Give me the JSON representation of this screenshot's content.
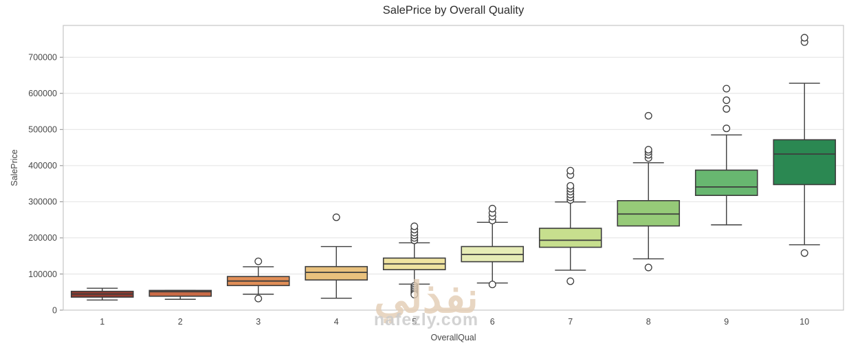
{
  "watermark": {
    "arabic": "نفذلي",
    "url": "nafezly.com"
  },
  "chart_data": {
    "type": "box",
    "title": "SalePrice by Overall Quality",
    "xlabel": "OverallQual",
    "ylabel": "SalePrice",
    "categories": [
      "1",
      "2",
      "3",
      "4",
      "5",
      "6",
      "7",
      "8",
      "9",
      "10"
    ],
    "yticks": [
      0,
      100000,
      200000,
      300000,
      400000,
      500000,
      600000,
      700000
    ],
    "ylim": [
      0,
      788000
    ],
    "grid": "horizontal",
    "legend": "none",
    "line_color": "#3d3d3d",
    "grid_color": "#e2e2e2",
    "spine_color": "#c6c6c6",
    "tick_color": "#474747",
    "series": [
      {
        "label": "1",
        "fill": "#953b30",
        "whisker_low": 28000,
        "q1": 36000,
        "median": 44500,
        "q3": 52000,
        "whisker_high": 60500,
        "outliers": []
      },
      {
        "label": "2",
        "fill": "#ca6b47",
        "whisker_low": 30000,
        "q1": 38500,
        "median": 51000,
        "q3": 54500,
        "whisker_high": 54500,
        "outliers": []
      },
      {
        "label": "3",
        "fill": "#e08e57",
        "whisker_low": 44000,
        "q1": 68000,
        "median": 80500,
        "q3": 93000,
        "whisker_high": 120000,
        "outliers": [
          135000,
          32000
        ]
      },
      {
        "label": "4",
        "fill": "#e9c17d",
        "whisker_low": 33000,
        "q1": 83500,
        "median": 104500,
        "q3": 120500,
        "whisker_high": 176000,
        "outliers": [
          257000
        ]
      },
      {
        "label": "5",
        "fill": "#efe3a0",
        "whisker_low": 72000,
        "q1": 112000,
        "median": 128000,
        "q3": 144000,
        "whisker_high": 186500,
        "outliers": [
          193000,
          200000,
          207000,
          214500,
          223000,
          232000,
          67000,
          62000,
          57000,
          52000,
          47000,
          43000
        ]
      },
      {
        "label": "6",
        "fill": "#e6ecb6",
        "whisker_low": 75000,
        "q1": 134000,
        "median": 154000,
        "q3": 176000,
        "whisker_high": 243000,
        "outliers": [
          248000,
          259000,
          269000,
          281000,
          71000
        ]
      },
      {
        "label": "7",
        "fill": "#c7df8e",
        "whisker_low": 110500,
        "q1": 174000,
        "median": 193500,
        "q3": 226500,
        "whisker_high": 299500,
        "outliers": [
          305000,
          312000,
          320000,
          328000,
          336000,
          344000,
          374000,
          386000,
          80000
        ]
      },
      {
        "label": "8",
        "fill": "#96ca78",
        "whisker_low": 142000,
        "q1": 233000,
        "median": 266000,
        "q3": 303000,
        "whisker_high": 408000,
        "outliers": [
          421000,
          430000,
          438000,
          444000,
          538000,
          118000
        ]
      },
      {
        "label": "9",
        "fill": "#68b770",
        "whisker_low": 236000,
        "q1": 317500,
        "median": 341000,
        "q3": 387500,
        "whisker_high": 485000,
        "outliers": [
          503000,
          557000,
          581000,
          613000
        ]
      },
      {
        "label": "10",
        "fill": "#2b8852",
        "whisker_low": 181000,
        "q1": 347500,
        "median": 432000,
        "q3": 471500,
        "whisker_high": 628000,
        "outliers": [
          742000,
          754000,
          158000
        ]
      }
    ]
  }
}
